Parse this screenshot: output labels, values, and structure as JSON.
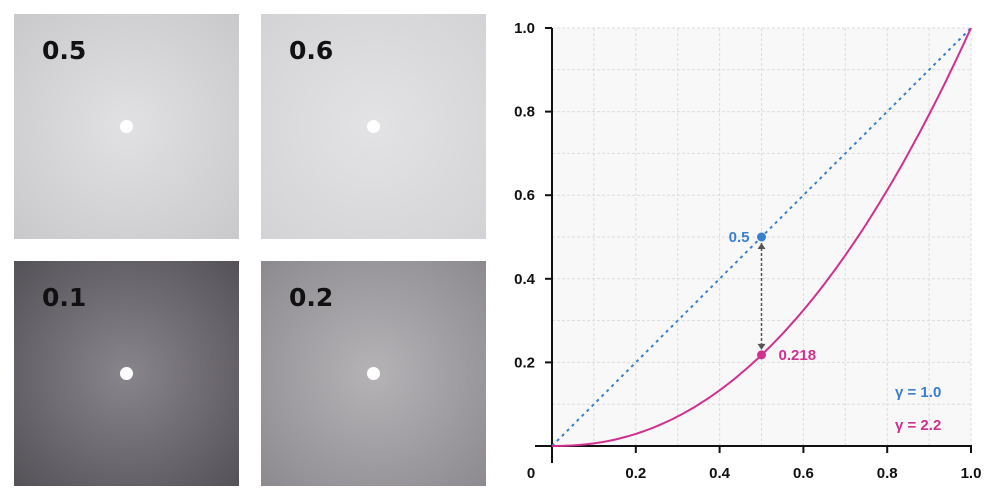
{
  "panels": [
    {
      "label": "0.5",
      "center": "#e1e0e2",
      "edge": "#c9c8cb"
    },
    {
      "label": "0.6",
      "center": "#e3e2e4",
      "edge": "#d3d2d5"
    },
    {
      "label": "0.1",
      "center": "#89858c",
      "edge": "#545157"
    },
    {
      "label": "0.2",
      "center": "#b5b3b6",
      "edge": "#8d8a8f"
    }
  ],
  "chart_data": {
    "type": "line",
    "xlim": [
      0,
      1
    ],
    "ylim": [
      0,
      1
    ],
    "x_ticks": [
      "0",
      "0.2",
      "0.4",
      "0.6",
      "0.8",
      "1.0"
    ],
    "y_ticks": [
      "0.2",
      "0.4",
      "0.6",
      "0.8",
      "1.0"
    ],
    "grid": true,
    "series": [
      {
        "name": "γ = 1.0",
        "gamma": 1.0,
        "color": "#3a7fcf",
        "style": "dotted"
      },
      {
        "name": "γ = 2.2",
        "gamma": 2.2,
        "color": "#d0308f",
        "style": "solid"
      }
    ],
    "annotations": [
      {
        "x": 0.5,
        "y": 0.5,
        "label": "0.5",
        "color": "#3a7fcf"
      },
      {
        "x": 0.5,
        "y": 0.218,
        "label": "0.218",
        "color": "#d0308f"
      }
    ],
    "legend_placement": "bottom-right"
  }
}
